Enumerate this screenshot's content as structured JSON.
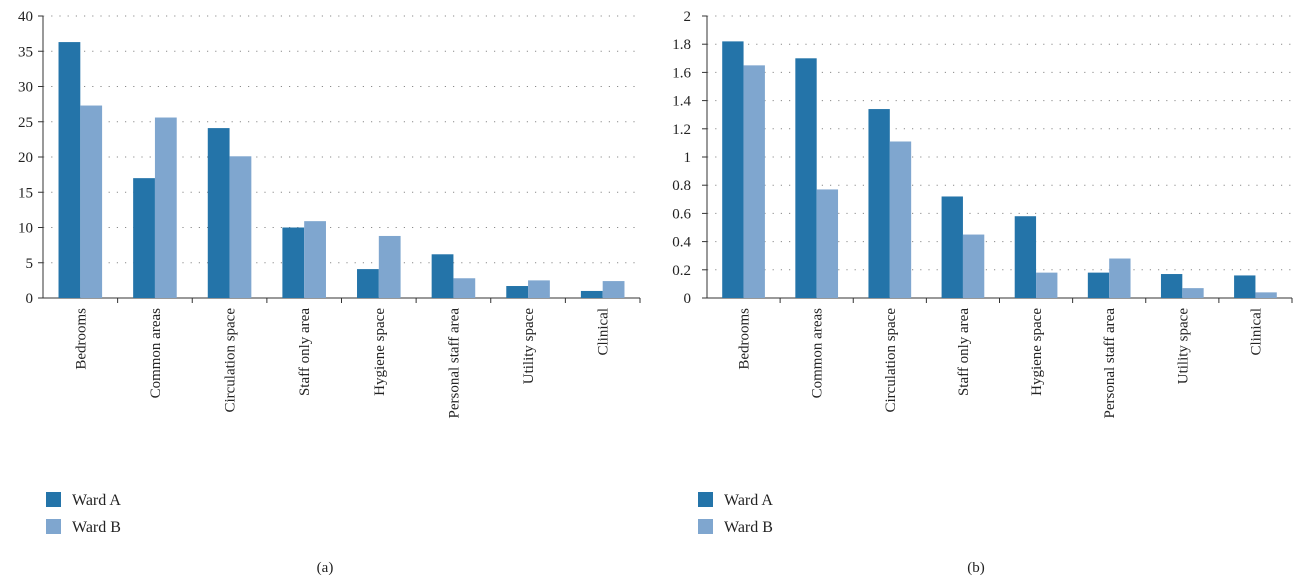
{
  "chart_data": [
    {
      "type": "bar",
      "panel_label": "(a)",
      "categories": [
        "Bedrooms",
        "Common areas",
        "Circulation space",
        "Staff only area",
        "Hygiene space",
        "Personal staff area",
        "Utility space",
        "Clinical"
      ],
      "series": [
        {
          "name": "Ward A",
          "values": [
            36.3,
            17.0,
            24.1,
            10.0,
            4.1,
            6.2,
            1.7,
            1.0
          ]
        },
        {
          "name": "Ward B",
          "values": [
            27.3,
            25.6,
            20.1,
            10.9,
            8.8,
            2.8,
            2.5,
            2.4
          ]
        }
      ],
      "yticks": [
        "0",
        "5",
        "10",
        "15",
        "20",
        "25",
        "30",
        "35",
        "40"
      ],
      "ylim": [
        0,
        40
      ],
      "grid": "dotted horizontal",
      "legend_position": "bottom-left"
    },
    {
      "type": "bar",
      "panel_label": "(b)",
      "categories": [
        "Bedrooms",
        "Common areas",
        "Circulation space",
        "Staff only area",
        "Hygiene space",
        "Personal staff area",
        "Utility space",
        "Clinical"
      ],
      "series": [
        {
          "name": "Ward A",
          "values": [
            1.82,
            1.7,
            1.34,
            0.72,
            0.58,
            0.18,
            0.17,
            0.16
          ]
        },
        {
          "name": "Ward B",
          "values": [
            1.65,
            0.77,
            1.11,
            0.45,
            0.18,
            0.28,
            0.07,
            0.04
          ]
        }
      ],
      "yticks": [
        "0",
        "0.2",
        "0.4",
        "0.6",
        "0.8",
        "1",
        "1.2",
        "1.4",
        "1.6",
        "1.8",
        "2"
      ],
      "ylim": [
        0,
        2
      ],
      "grid": "dotted horizontal",
      "legend_position": "bottom-left"
    }
  ],
  "colors": {
    "ward_a": "#2474a9",
    "ward_b": "#7fa6cf"
  }
}
